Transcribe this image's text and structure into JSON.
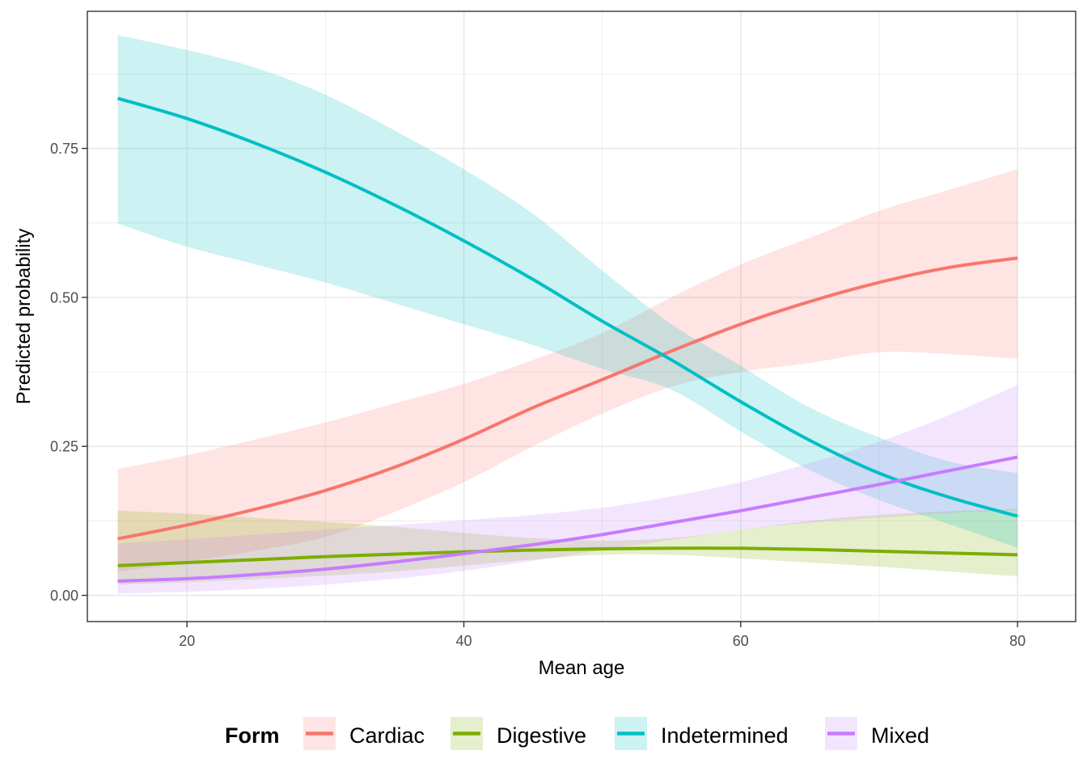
{
  "chart_data": {
    "type": "line",
    "xlabel": "Mean age",
    "ylabel": "Predicted probability",
    "xlim": [
      12.8,
      84.2
    ],
    "ylim": [
      -0.044,
      0.98
    ],
    "x_ticks": [
      20,
      40,
      60,
      80
    ],
    "y_ticks": [
      0,
      0.25,
      0.5,
      0.75
    ],
    "x_tick_labels": [
      "20",
      "40",
      "60",
      "80"
    ],
    "y_tick_labels": [
      "0.00",
      "0.25",
      "0.50",
      "0.75"
    ],
    "grid": true,
    "legend": {
      "title": "Form",
      "position": "bottom"
    },
    "x": [
      15,
      20,
      25,
      30,
      35,
      40,
      45,
      50,
      55,
      60,
      65,
      70,
      75,
      80
    ],
    "series": [
      {
        "name": "Cardiac",
        "color": "#F8766D",
        "values": [
          0.095,
          0.118,
          0.145,
          0.176,
          0.215,
          0.262,
          0.315,
          0.362,
          0.41,
          0.455,
          0.493,
          0.525,
          0.55,
          0.566
        ],
        "lower": [
          0.04,
          0.056,
          0.075,
          0.098,
          0.14,
          0.19,
          0.25,
          0.305,
          0.35,
          0.375,
          0.39,
          0.408,
          0.405,
          0.397
        ],
        "upper": [
          0.212,
          0.235,
          0.262,
          0.29,
          0.322,
          0.355,
          0.395,
          0.44,
          0.5,
          0.555,
          0.6,
          0.645,
          0.68,
          0.715
        ]
      },
      {
        "name": "Digestive",
        "color": "#7CAE00",
        "values": [
          0.05,
          0.055,
          0.06,
          0.065,
          0.069,
          0.073,
          0.076,
          0.078,
          0.079,
          0.079,
          0.077,
          0.074,
          0.071,
          0.068
        ],
        "lower": [
          0.018,
          0.022,
          0.027,
          0.033,
          0.04,
          0.05,
          0.06,
          0.068,
          0.068,
          0.062,
          0.055,
          0.048,
          0.04,
          0.032
        ],
        "upper": [
          0.142,
          0.137,
          0.13,
          0.123,
          0.115,
          0.105,
          0.096,
          0.092,
          0.096,
          0.11,
          0.125,
          0.135,
          0.141,
          0.145
        ]
      },
      {
        "name": "Indetermined",
        "color": "#00BFC4",
        "values": [
          0.834,
          0.8,
          0.758,
          0.71,
          0.655,
          0.595,
          0.53,
          0.46,
          0.395,
          0.325,
          0.26,
          0.205,
          0.165,
          0.133
        ],
        "lower": [
          0.624,
          0.585,
          0.555,
          0.525,
          0.49,
          0.455,
          0.42,
          0.38,
          0.345,
          0.275,
          0.21,
          0.16,
          0.12,
          0.08
        ],
        "upper": [
          0.94,
          0.915,
          0.885,
          0.84,
          0.78,
          0.715,
          0.64,
          0.545,
          0.455,
          0.385,
          0.315,
          0.265,
          0.225,
          0.205
        ]
      },
      {
        "name": "Mixed",
        "color": "#C77CFF",
        "values": [
          0.024,
          0.028,
          0.035,
          0.044,
          0.056,
          0.07,
          0.085,
          0.102,
          0.122,
          0.142,
          0.164,
          0.186,
          0.209,
          0.232
        ],
        "lower": [
          0.003,
          0.006,
          0.011,
          0.018,
          0.028,
          0.041,
          0.058,
          0.076,
          0.093,
          0.11,
          0.122,
          0.13,
          0.138,
          0.143
        ],
        "upper": [
          0.087,
          0.094,
          0.102,
          0.11,
          0.118,
          0.126,
          0.135,
          0.147,
          0.166,
          0.19,
          0.222,
          0.258,
          0.302,
          0.353
        ]
      }
    ]
  }
}
